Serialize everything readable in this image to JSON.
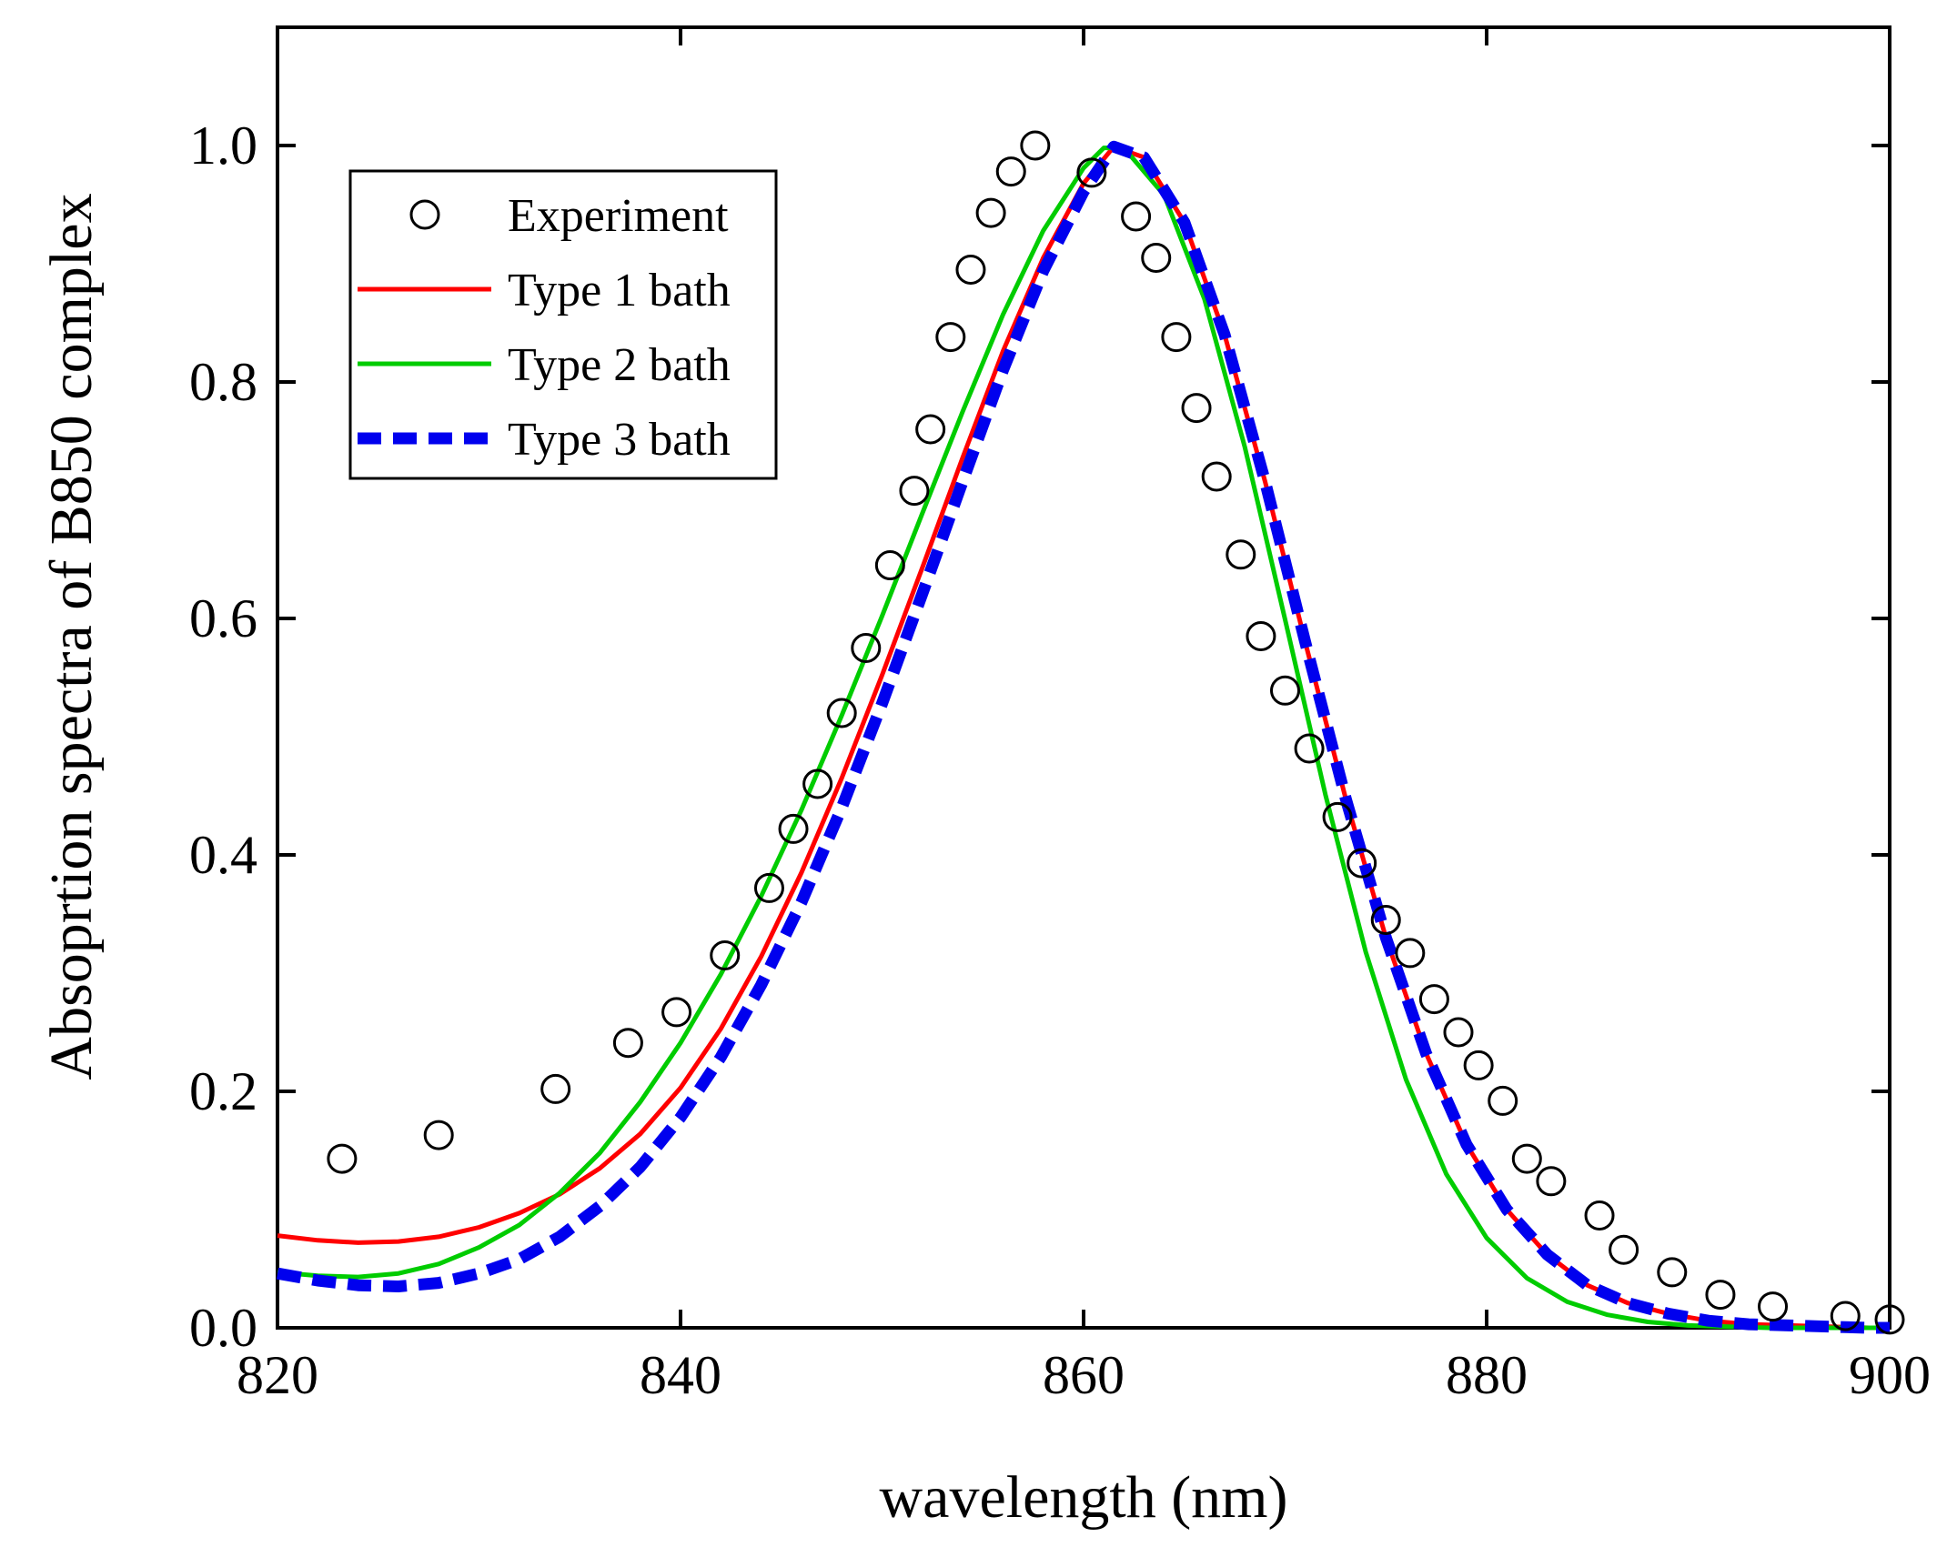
{
  "chart_data": {
    "type": "line",
    "xlabel": "wavelength (nm)",
    "ylabel": "Absoprtion spectra of B850 complex",
    "xlim": [
      820,
      900
    ],
    "ylim": [
      0,
      1.1
    ],
    "xticks": [
      820,
      840,
      860,
      880,
      900
    ],
    "xtick_labels": [
      "820",
      "840",
      "860",
      "880",
      "900"
    ],
    "yticks": [
      0,
      0.2,
      0.4,
      0.6,
      0.8,
      1.0
    ],
    "ytick_labels": [
      "0.0",
      "0.2",
      "0.4",
      "0.6",
      "0.8",
      "1.0"
    ],
    "grid": false,
    "legend_position": "top-left",
    "series": [
      {
        "name": "Experiment",
        "style": "open-circle",
        "color": "#000000",
        "x": [
          823.2,
          828.0,
          833.8,
          837.4,
          839.8,
          842.2,
          844.4,
          845.6,
          846.8,
          848.0,
          849.2,
          850.4,
          851.6,
          852.4,
          853.4,
          854.4,
          855.4,
          856.4,
          857.6,
          860.4,
          862.6,
          863.6,
          864.6,
          865.6,
          866.6,
          867.8,
          868.8,
          870.0,
          871.2,
          872.6,
          873.8,
          875.0,
          876.2,
          877.4,
          878.6,
          879.6,
          880.8,
          882.0,
          883.2,
          885.6,
          886.8,
          889.2,
          891.6,
          894.2,
          897.8,
          900.0
        ],
        "y": [
          0.143,
          0.163,
          0.202,
          0.241,
          0.267,
          0.315,
          0.372,
          0.422,
          0.46,
          0.52,
          0.575,
          0.645,
          0.708,
          0.76,
          0.838,
          0.895,
          0.943,
          0.978,
          1.0,
          0.977,
          0.94,
          0.905,
          0.838,
          0.778,
          0.72,
          0.654,
          0.585,
          0.539,
          0.49,
          0.432,
          0.393,
          0.345,
          0.317,
          0.278,
          0.25,
          0.222,
          0.192,
          0.143,
          0.124,
          0.095,
          0.066,
          0.047,
          0.028,
          0.018,
          0.01,
          0.007
        ]
      },
      {
        "name": "Type 1 bath",
        "style": "solid",
        "color": "#ff0000",
        "x": [
          820,
          822,
          824,
          826,
          828,
          830,
          832,
          834,
          836,
          838,
          840,
          842,
          844,
          846,
          848,
          850,
          852,
          854,
          856,
          858,
          860,
          861.5,
          863,
          865,
          867,
          869,
          871,
          873,
          875,
          877,
          879,
          881,
          883,
          885,
          887,
          889,
          891,
          893,
          895,
          897,
          899,
          900
        ],
        "y": [
          0.078,
          0.074,
          0.072,
          0.073,
          0.077,
          0.085,
          0.097,
          0.113,
          0.135,
          0.164,
          0.203,
          0.253,
          0.314,
          0.385,
          0.465,
          0.552,
          0.643,
          0.736,
          0.826,
          0.905,
          0.968,
          0.999,
          0.99,
          0.935,
          0.84,
          0.716,
          0.58,
          0.448,
          0.33,
          0.232,
          0.155,
          0.1,
          0.062,
          0.036,
          0.021,
          0.012,
          0.006,
          0.003,
          0.002,
          0.001,
          0.0,
          0.0
        ]
      },
      {
        "name": "Type 2 bath",
        "style": "solid",
        "color": "#00cc00",
        "x": [
          820,
          822,
          824,
          826,
          828,
          830,
          832,
          834,
          836,
          838,
          840,
          842,
          844,
          846,
          848,
          850,
          852,
          854,
          856,
          858,
          860,
          861,
          862,
          864,
          866,
          868,
          870,
          872,
          874,
          876,
          878,
          880,
          882,
          884,
          886,
          888,
          890,
          892,
          894,
          896,
          898,
          900
        ],
        "y": [
          0.047,
          0.044,
          0.043,
          0.046,
          0.054,
          0.068,
          0.087,
          0.114,
          0.148,
          0.191,
          0.241,
          0.299,
          0.365,
          0.438,
          0.518,
          0.602,
          0.689,
          0.775,
          0.857,
          0.928,
          0.981,
          0.998,
          0.998,
          0.958,
          0.87,
          0.745,
          0.599,
          0.451,
          0.318,
          0.21,
          0.13,
          0.076,
          0.042,
          0.022,
          0.011,
          0.005,
          0.002,
          0.001,
          0.0,
          0.0,
          0.0,
          0.0
        ]
      },
      {
        "name": "Type 3 bath",
        "style": "dashed",
        "color": "#0000ee",
        "x": [
          820,
          822,
          824,
          826,
          828,
          830,
          832,
          834,
          836,
          838,
          840,
          842,
          844,
          846,
          848,
          850,
          852,
          854,
          856,
          858,
          860,
          861.5,
          863,
          865,
          867,
          869,
          871,
          873,
          875,
          877,
          879,
          881,
          883,
          885,
          887,
          889,
          891,
          893,
          895,
          897,
          899,
          900
        ],
        "y": [
          0.046,
          0.04,
          0.036,
          0.035,
          0.038,
          0.046,
          0.058,
          0.077,
          0.103,
          0.136,
          0.178,
          0.229,
          0.29,
          0.36,
          0.44,
          0.528,
          0.621,
          0.716,
          0.81,
          0.894,
          0.961,
          0.999,
          0.99,
          0.935,
          0.84,
          0.716,
          0.58,
          0.448,
          0.33,
          0.232,
          0.155,
          0.1,
          0.062,
          0.036,
          0.021,
          0.012,
          0.006,
          0.003,
          0.002,
          0.001,
          0.0,
          0.0
        ]
      }
    ]
  }
}
